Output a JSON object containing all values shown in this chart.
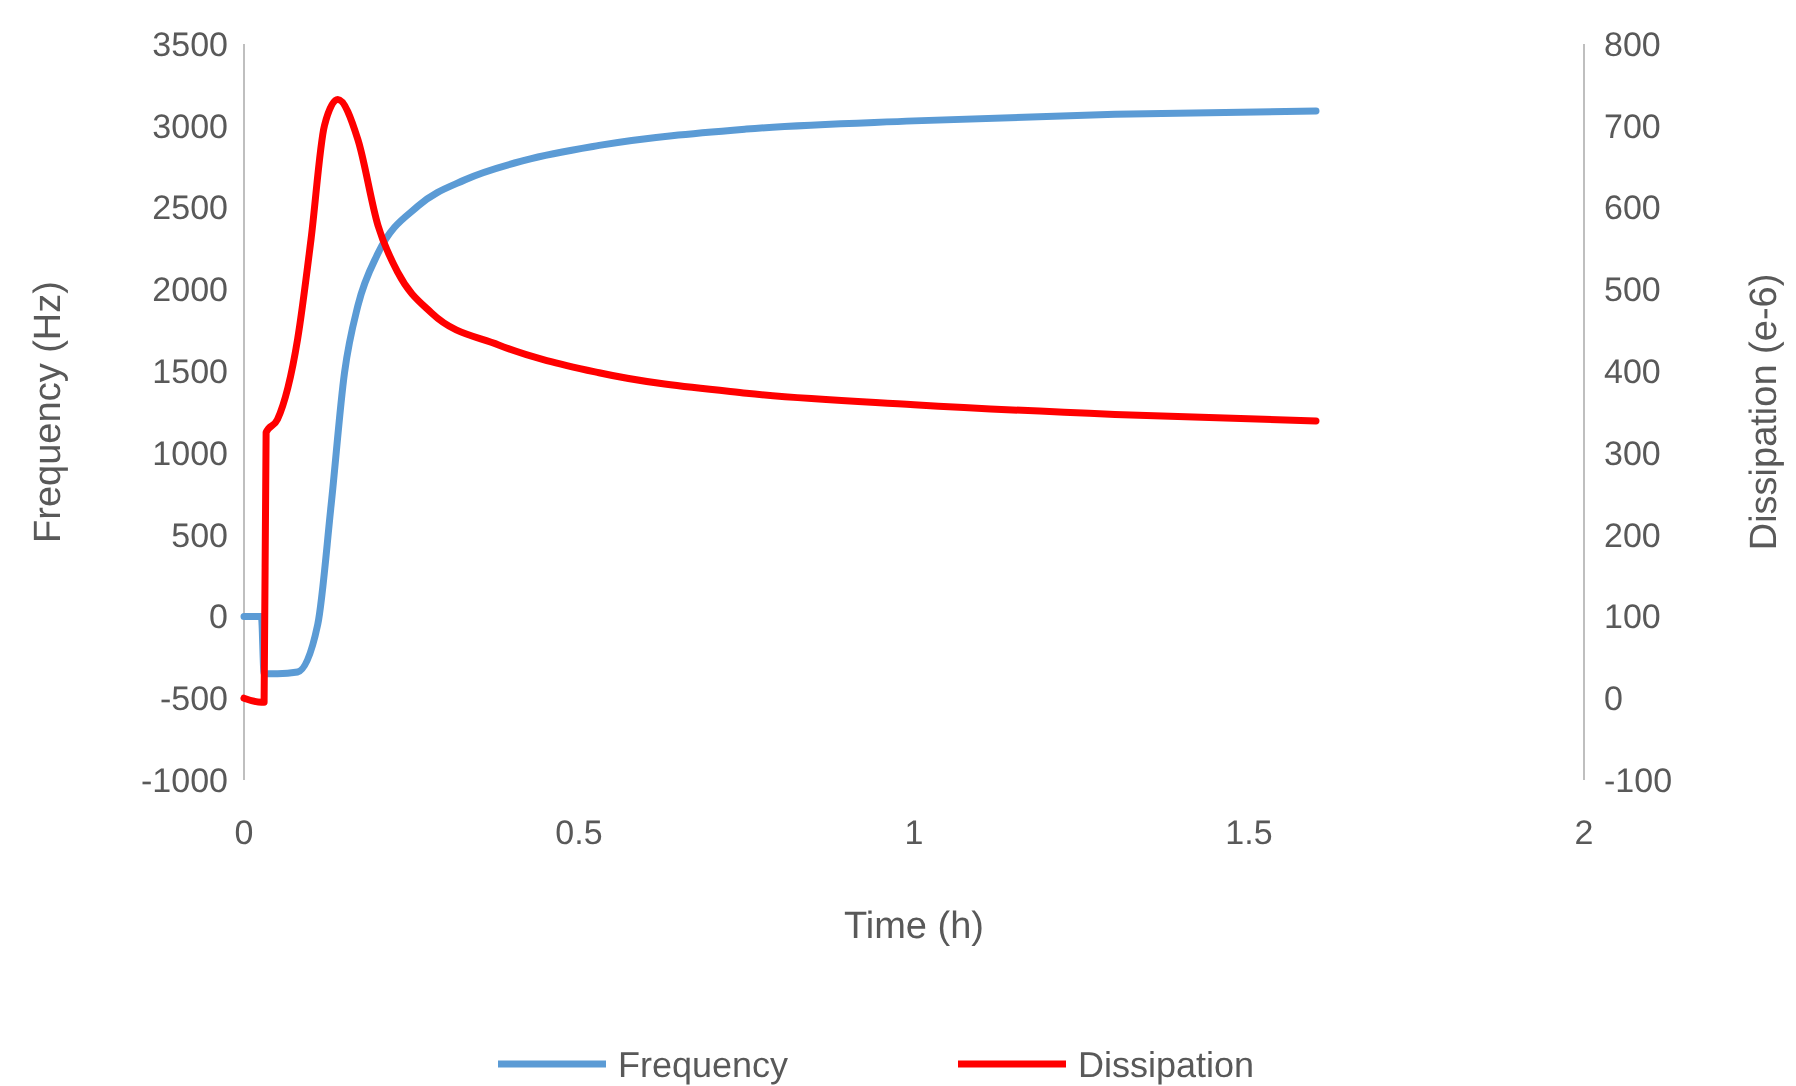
{
  "chart_data": {
    "type": "line",
    "xlabel": "Time (h)",
    "ylabel": "Frequency (Hz)",
    "y2label": "Dissipation (e-6)",
    "xlim": [
      0,
      2
    ],
    "xticks": [
      0,
      0.5,
      1,
      1.5,
      2
    ],
    "ylim": [
      -1000,
      3500
    ],
    "yticks": [
      -1000,
      -500,
      0,
      500,
      1000,
      1500,
      2000,
      2500,
      3000,
      3500
    ],
    "y2lim": [
      -100,
      800
    ],
    "y2ticks": [
      -100,
      0,
      100,
      200,
      300,
      400,
      500,
      600,
      700,
      800
    ],
    "grid": false,
    "legend": "bottom",
    "marker": "none",
    "line_style": "solid",
    "series": [
      {
        "name": "Frequency",
        "color": "#5b9bd5",
        "x": [
          0,
          0.026,
          0.03,
          0.05,
          0.08,
          0.11,
          0.13,
          0.15,
          0.17,
          0.2,
          0.26,
          0.33,
          0.42,
          0.53,
          0.75,
          1,
          1.3,
          1.6
        ],
        "values": [
          0,
          0,
          -350,
          -350,
          -340,
          -50,
          680,
          1490,
          1900,
          2220,
          2510,
          2670,
          2790,
          2880,
          2980,
          3030,
          3070,
          3090
        ]
      },
      {
        "name": "Dissipation",
        "color": "#ff0000",
        "axis": "y2",
        "x": [
          0,
          0.026,
          0.03,
          0.033,
          0.05,
          0.08,
          0.1,
          0.12,
          0.14,
          0.17,
          0.2,
          0.23,
          0.28,
          0.38,
          0.53,
          0.75,
          1,
          1.3,
          1.6
        ],
        "values": [
          0,
          -5,
          -5,
          325,
          341,
          439,
          561,
          700,
          732,
          683,
          578,
          520,
          471,
          432,
          398,
          373,
          359,
          347,
          339
        ]
      }
    ]
  }
}
